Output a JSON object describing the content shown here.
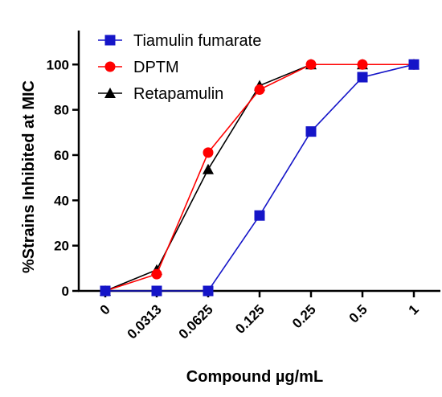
{
  "chart_data": {
    "type": "line",
    "title": "",
    "xlabel": "Compound µg/mL",
    "ylabel": "%Strains Inhibited at MIC",
    "categories": [
      "0",
      "0.0313",
      "0.0625",
      "0.125",
      "0.25",
      "0.5",
      "1"
    ],
    "y_ticks": [
      "0",
      "20",
      "40",
      "60",
      "80",
      "100"
    ],
    "ylim": [
      0,
      115
    ],
    "grid": false,
    "legend_position": "top-left",
    "series": [
      {
        "name": "Tiamulin fumarate",
        "color": "#1515c8",
        "marker": "square",
        "values": [
          0,
          0,
          0,
          33.3,
          70.4,
          94.4,
          100
        ]
      },
      {
        "name": "DPTM",
        "color": "#ff0000",
        "marker": "circle",
        "values": [
          0,
          7.4,
          61.1,
          88.9,
          100,
          100,
          100
        ]
      },
      {
        "name": "Retapamulin",
        "color": "#000000",
        "marker": "triangle",
        "values": [
          0,
          9.3,
          53.7,
          90.7,
          100,
          100,
          100
        ]
      }
    ]
  }
}
